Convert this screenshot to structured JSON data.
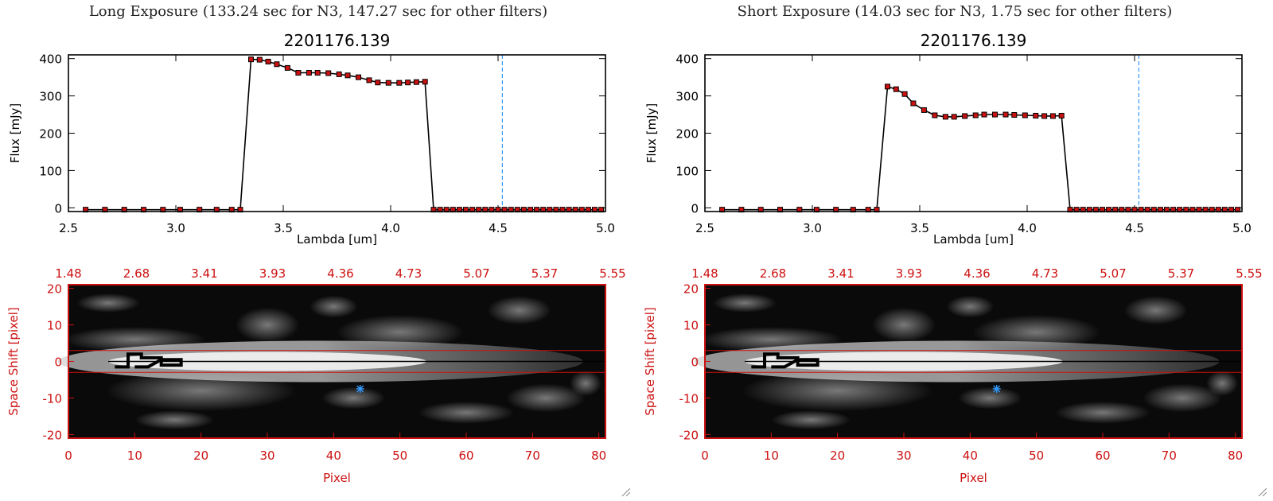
{
  "panels": [
    {
      "exposure_title": "Long Exposure (133.24 sec for N3, 147.27 sec for other filters)",
      "chart_data": [
        {
          "type": "line",
          "title": "2201176.139",
          "xlabel": "Lambda [um]",
          "ylabel": "Flux [mJy]",
          "xlim": [
            2.5,
            5.0
          ],
          "ylim": [
            -10,
            410
          ],
          "xticks": [
            "2.5",
            "3.0",
            "3.5",
            "4.0",
            "4.5",
            "5.0"
          ],
          "yticks": [
            "0",
            "100",
            "200",
            "300",
            "400"
          ],
          "vline_x": 4.52,
          "series": [
            {
              "x": [
                2.58,
                2.67,
                2.76,
                2.85,
                2.94,
                3.02,
                3.11,
                3.19,
                3.26,
                3.3,
                3.35,
                3.39,
                3.43,
                3.47,
                3.52,
                3.57,
                3.62,
                3.66,
                3.71,
                3.76,
                3.8,
                3.85,
                3.9,
                3.94,
                3.99,
                4.04,
                4.08,
                4.12,
                4.16,
                4.2,
                4.23,
                4.26,
                4.29,
                4.32,
                4.35,
                4.38,
                4.41,
                4.44,
                4.47,
                4.5,
                4.53,
                4.56,
                4.59,
                4.62,
                4.65,
                4.68,
                4.71,
                4.74,
                4.77,
                4.8,
                4.83,
                4.86,
                4.89,
                4.92,
                4.95,
                4.98
              ],
              "y": [
                -5,
                -5,
                -5,
                -5,
                -5,
                -5,
                -5,
                -5,
                -5,
                -5,
                398,
                397,
                392,
                385,
                375,
                362,
                362,
                362,
                361,
                358,
                355,
                350,
                342,
                336,
                335,
                335,
                336,
                337,
                338,
                -5,
                -5,
                -5,
                -5,
                -5,
                -5,
                -5,
                -5,
                -5,
                -5,
                -5,
                -5,
                -5,
                -5,
                -5,
                -5,
                -5,
                -5,
                -5,
                -5,
                -5,
                -5,
                -5,
                -5,
                -5,
                -5,
                -5
              ]
            }
          ]
        },
        {
          "type": "heatmap",
          "xlabel": "Pixel",
          "ylabel": "Space Shift [pixel]",
          "xlim": [
            0,
            81
          ],
          "ylim": [
            -21,
            21
          ],
          "xticks": [
            "0",
            "10",
            "20",
            "30",
            "40",
            "50",
            "60",
            "70",
            "80"
          ],
          "yticks": [
            "20",
            "10",
            "0",
            "-10",
            "-20"
          ],
          "top_axis_ticks": [
            "1.48",
            "2.68",
            "3.41",
            "3.93",
            "4.36",
            "4.73",
            "5.07",
            "5.37",
            "5.55"
          ],
          "aperture_rows": [
            3,
            -3
          ],
          "star_marker": {
            "x": 44,
            "y": -7.5
          }
        }
      ]
    },
    {
      "exposure_title": "Short Exposure (14.03 sec for N3, 1.75 sec for other filters)",
      "chart_data": [
        {
          "type": "line",
          "title": "2201176.139",
          "xlabel": "Lambda [um]",
          "ylabel": "Flux [mJy]",
          "xlim": [
            2.5,
            5.0
          ],
          "ylim": [
            -10,
            410
          ],
          "xticks": [
            "2.5",
            "3.0",
            "3.5",
            "4.0",
            "4.5",
            "5.0"
          ],
          "yticks": [
            "0",
            "100",
            "200",
            "300",
            "400"
          ],
          "vline_x": 4.52,
          "series": [
            {
              "x": [
                2.58,
                2.67,
                2.76,
                2.85,
                2.94,
                3.02,
                3.11,
                3.19,
                3.26,
                3.3,
                3.35,
                3.39,
                3.43,
                3.47,
                3.52,
                3.57,
                3.62,
                3.66,
                3.71,
                3.76,
                3.8,
                3.85,
                3.9,
                3.94,
                3.99,
                4.04,
                4.08,
                4.12,
                4.16,
                4.2,
                4.23,
                4.26,
                4.29,
                4.32,
                4.35,
                4.38,
                4.41,
                4.44,
                4.47,
                4.5,
                4.53,
                4.56,
                4.59,
                4.62,
                4.65,
                4.68,
                4.71,
                4.74,
                4.77,
                4.8,
                4.83,
                4.86,
                4.89,
                4.92,
                4.95,
                4.98
              ],
              "y": [
                -5,
                -5,
                -5,
                -5,
                -5,
                -5,
                -5,
                -5,
                -5,
                -5,
                325,
                318,
                305,
                280,
                262,
                248,
                244,
                244,
                246,
                248,
                250,
                250,
                250,
                249,
                248,
                247,
                246,
                246,
                247,
                -5,
                -5,
                -5,
                -5,
                -5,
                -5,
                -5,
                -5,
                -5,
                -5,
                -5,
                -5,
                -5,
                -5,
                -5,
                -5,
                -5,
                -5,
                -5,
                -5,
                -5,
                -5,
                -5,
                -5,
                -5,
                -5,
                -5
              ]
            }
          ]
        },
        {
          "type": "heatmap",
          "xlabel": "Pixel",
          "ylabel": "Space Shift [pixel]",
          "xlim": [
            0,
            81
          ],
          "ylim": [
            -21,
            21
          ],
          "xticks": [
            "0",
            "10",
            "20",
            "30",
            "40",
            "50",
            "60",
            "70",
            "80"
          ],
          "yticks": [
            "20",
            "10",
            "0",
            "-10",
            "-20"
          ],
          "top_axis_ticks": [
            "1.48",
            "2.68",
            "3.41",
            "3.93",
            "4.36",
            "4.73",
            "5.07",
            "5.37",
            "5.55"
          ],
          "aperture_rows": [
            3,
            -3
          ],
          "star_marker": {
            "x": 44,
            "y": -7.5
          }
        }
      ]
    }
  ],
  "colors": {
    "axis_black": "#000000",
    "axis_red": "#cc1111",
    "marker_fill": "#cc1111",
    "vline_blue": "#3399ff",
    "star_blue": "#3399ff"
  },
  "icons": [
    "resize-grip-icon"
  ]
}
